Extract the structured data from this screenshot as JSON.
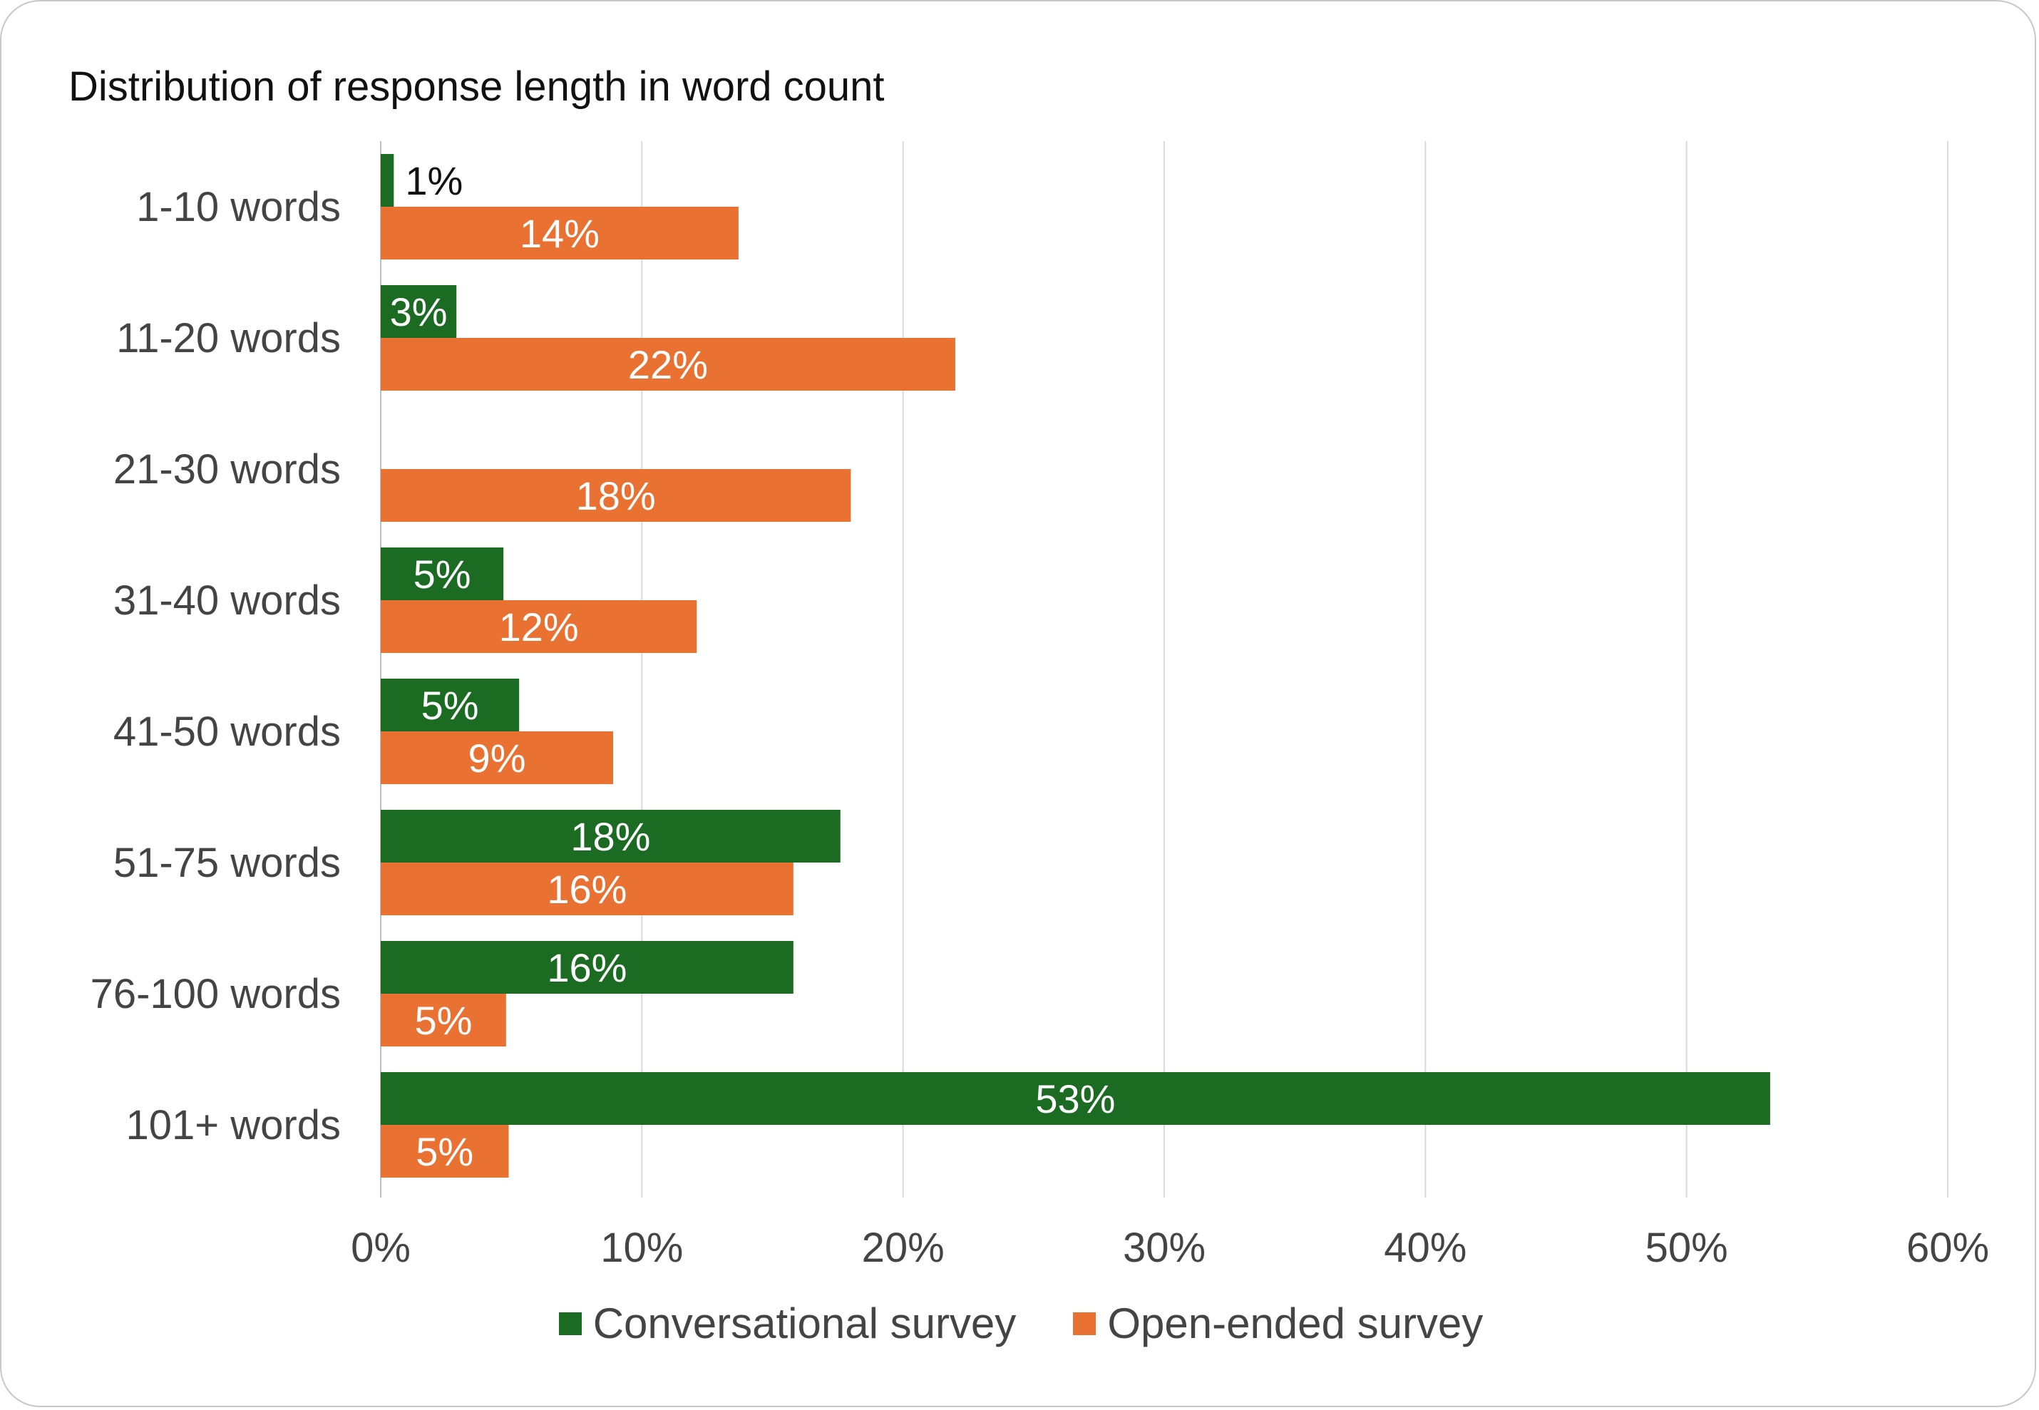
{
  "chart_data": {
    "type": "bar",
    "orientation": "horizontal",
    "title": "Distribution of response length in word count",
    "categories": [
      "1-10 words",
      "11-20 words",
      "21-30 words",
      "31-40 words",
      "41-50 words",
      "51-75 words",
      "76-100 words",
      "101+ words"
    ],
    "series": [
      {
        "name": "Conversational survey",
        "color": "#1c6b22",
        "values": [
          0.5,
          2.9,
          0,
          4.7,
          5.3,
          17.6,
          15.8,
          53.2
        ],
        "labels": [
          "1%",
          "3%",
          "",
          "5%",
          "5%",
          "18%",
          "16%",
          "53%"
        ]
      },
      {
        "name": "Open-ended survey",
        "color": "#e97132",
        "values": [
          13.7,
          22.0,
          18.0,
          12.1,
          8.9,
          15.8,
          4.8,
          4.9
        ],
        "labels": [
          "14%",
          "22%",
          "18%",
          "12%",
          "9%",
          "16%",
          "5%",
          "5%"
        ]
      }
    ],
    "xlim": [
      0,
      60
    ],
    "xticks": [
      0,
      10,
      20,
      30,
      40,
      50,
      60
    ],
    "xtick_labels": [
      "0%",
      "10%",
      "20%",
      "30%",
      "40%",
      "50%",
      "60%"
    ],
    "xlabel": "",
    "ylabel": "",
    "grid": true,
    "legend_position": "bottom"
  }
}
